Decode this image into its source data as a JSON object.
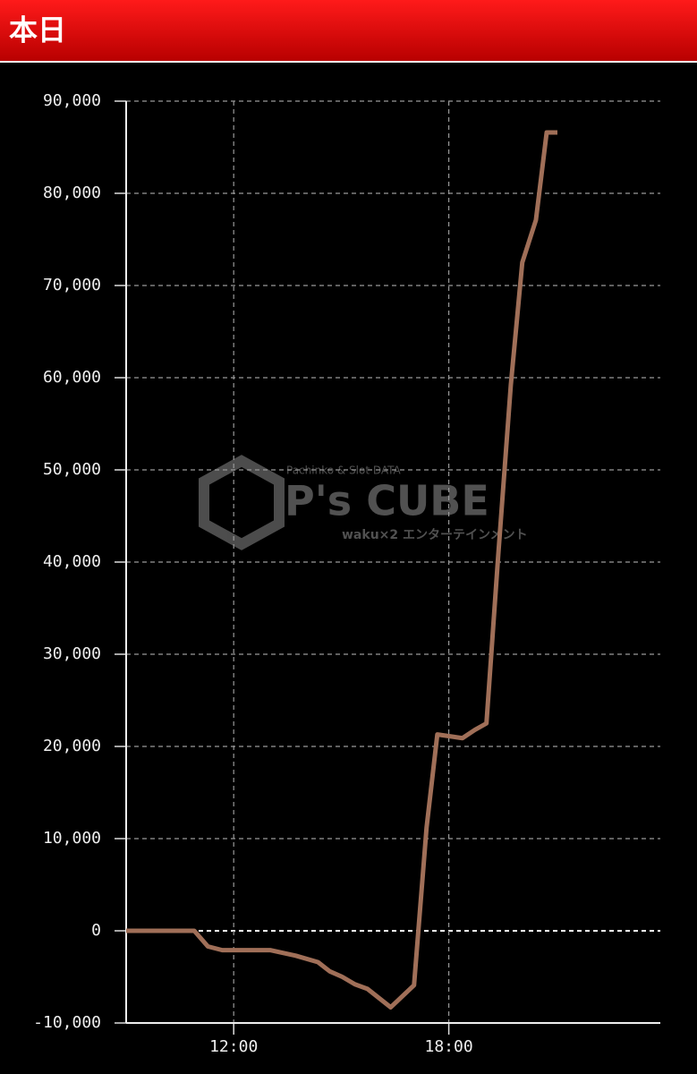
{
  "header": {
    "title": "本日"
  },
  "chart_data": {
    "type": "line",
    "watermark": {
      "brand": "P's CUBE",
      "tagline": "Pachinko & Slot DATA",
      "sub": "waku×2 エンターテインメント"
    },
    "x": [
      9.0,
      10.9,
      11.28,
      11.68,
      13.03,
      13.73,
      14.35,
      14.68,
      15.03,
      15.38,
      15.73,
      16.38,
      17.03,
      17.38,
      17.68,
      18.38,
      18.73,
      19.05,
      19.38,
      19.73,
      20.05,
      20.43,
      20.73,
      21.03
    ],
    "series": [
      {
        "color": "#a06f58",
        "values": [
          0,
          0,
          -1700,
          -2100,
          -2100,
          -2700,
          -3400,
          -4400,
          -5000,
          -5800,
          -6300,
          -8300,
          -5900,
          11200,
          21300,
          20900,
          21800,
          22500,
          40800,
          59200,
          72500,
          77100,
          86600,
          86600
        ]
      }
    ],
    "xlim": [
      9,
      24
    ],
    "xticks": [
      {
        "value": 12,
        "label": "12:00"
      },
      {
        "value": 18,
        "label": "18:00"
      }
    ],
    "ylim": [
      -10000,
      90000
    ],
    "yticks": [
      {
        "value": -10000,
        "label": "-10,000"
      },
      0,
      {
        "value": 10000,
        "label": "10,000"
      },
      {
        "value": 20000,
        "label": "20,000"
      },
      {
        "value": 30000,
        "label": "30,000"
      },
      {
        "value": 40000,
        "label": "40,000"
      },
      {
        "value": 50000,
        "label": "50,000"
      },
      {
        "value": 60000,
        "label": "60,000"
      },
      {
        "value": 70000,
        "label": "70,000"
      },
      {
        "value": 80000,
        "label": "80,000"
      },
      {
        "value": 90000,
        "label": "90,000"
      }
    ],
    "grid": true
  }
}
